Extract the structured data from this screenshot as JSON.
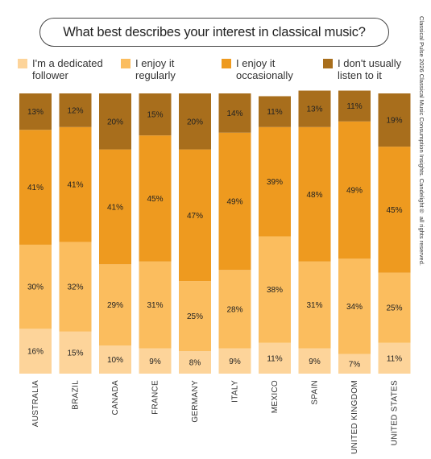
{
  "header": {
    "title": "What best describes your interest in classical music?",
    "side_note": "Classical Pulse 2026 Classical Music Consumption Insights. Candelight® all rights reserved."
  },
  "chart_data": {
    "type": "bar",
    "stacked": true,
    "categories": [
      "AUSTRALIA",
      "BRAZIL",
      "CANADA",
      "FRANCE",
      "GERMANY",
      "ITALY",
      "MEXICO",
      "SPAIN",
      "UNITED KINGDOM",
      "UNITED STATES"
    ],
    "series": [
      {
        "name": "I'm a dedicated follower",
        "color": "#fdd49a",
        "values": [
          16,
          15,
          10,
          9,
          8,
          9,
          11,
          9,
          7,
          11
        ]
      },
      {
        "name": "I enjoy it regularly",
        "color": "#fbbd5e",
        "values": [
          30,
          32,
          29,
          31,
          25,
          28,
          38,
          31,
          34,
          25
        ]
      },
      {
        "name": "I enjoy it occasionally",
        "color": "#ee9a1f",
        "values": [
          41,
          41,
          41,
          45,
          47,
          49,
          39,
          48,
          49,
          45
        ]
      },
      {
        "name": "I don't usually listen to it",
        "color": "#a86e1c",
        "values": [
          13,
          12,
          20,
          15,
          20,
          14,
          11,
          13,
          11,
          19
        ]
      }
    ],
    "value_suffix": "%",
    "ylim": [
      0,
      100
    ],
    "legend": "top",
    "grid": false
  }
}
